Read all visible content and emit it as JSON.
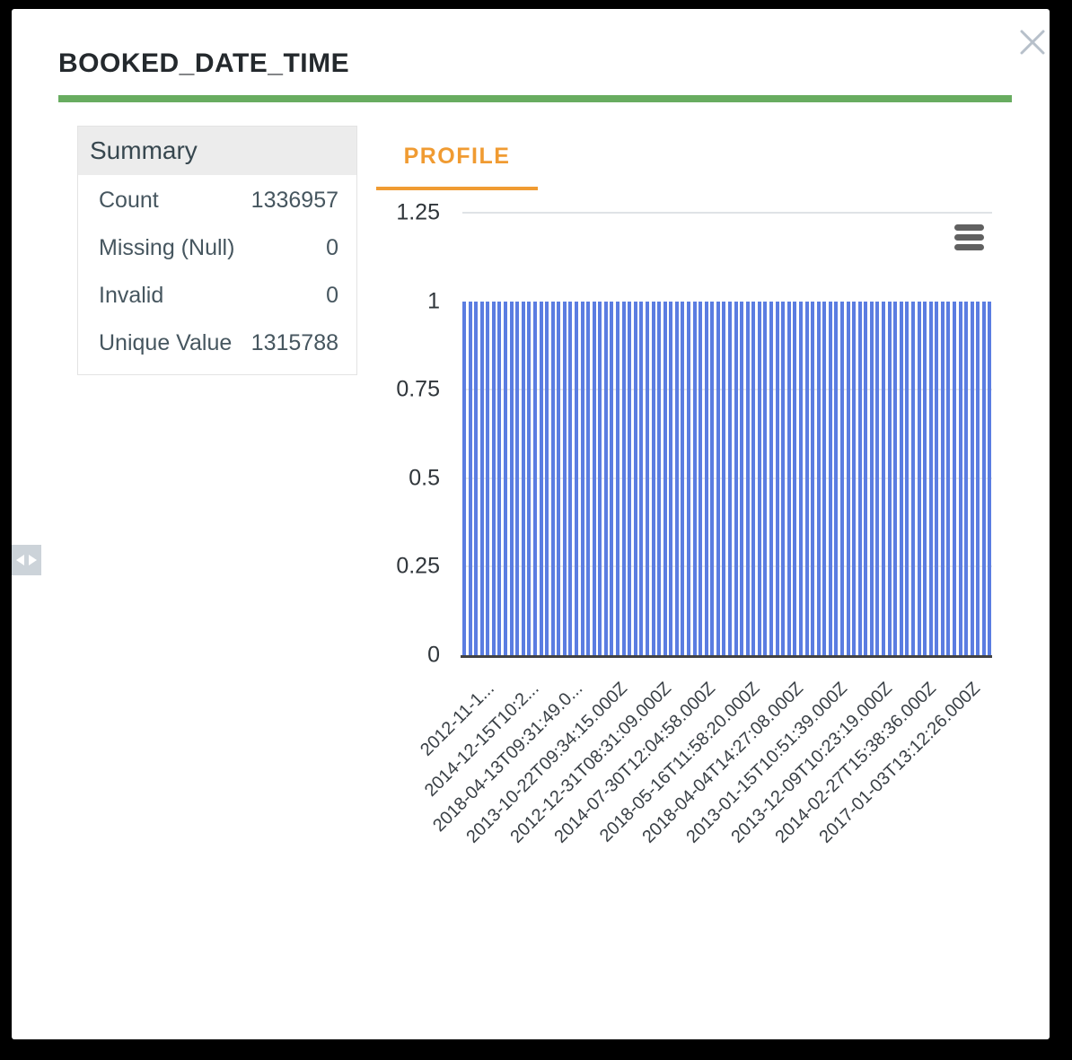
{
  "page": {
    "background_color": "#000000"
  },
  "modal": {
    "title": "BOOKED_DATE_TIME",
    "accent_color": "#68ac60"
  },
  "summary": {
    "title": "Summary",
    "rows": [
      {
        "label": "Count",
        "value": "1336957"
      },
      {
        "label": "Missing (Null)",
        "value": "0"
      },
      {
        "label": "Invalid",
        "value": "0"
      },
      {
        "label": "Unique Value",
        "value": "1315788"
      }
    ]
  },
  "tabs": {
    "profile_label": "PROFILE",
    "active_color": "#f09b32"
  },
  "chart_data": {
    "type": "bar",
    "title": "",
    "xlabel": "",
    "ylabel": "",
    "ylim": [
      0,
      1.25
    ],
    "y_ticks": [
      1.25,
      1,
      0.75,
      0.5,
      0.25,
      0
    ],
    "y_tick_labels": [
      "1.25",
      "1",
      "0.75",
      "0.5",
      "0.25",
      "0"
    ],
    "bar_count": 90,
    "uniform_bar_value": 1,
    "bar_color": "#5b7de1",
    "x_tick_labels": [
      "2012-11-1...",
      "2014-12-15T10:2...",
      "2018-04-13T09:31:49.0...",
      "2013-10-22T09:34:15.000Z",
      "2012-12-31T08:31:09.000Z",
      "2014-07-30T12:04:58.000Z",
      "2018-05-16T11:58:20.000Z",
      "2018-04-04T14:27:08.000Z",
      "2013-01-15T10:51:39.000Z",
      "2013-12-09T10:23:19.000Z",
      "2014-02-27T15:38:36.000Z",
      "2017-01-03T13:12:26.000Z"
    ],
    "x_tick_rotation_deg": -45,
    "gridlines": {
      "strong": [
        1.25
      ],
      "faint": [
        0.75,
        0.5,
        0.25
      ]
    },
    "legend": "none",
    "menu_icon": "hamburger"
  },
  "side_handle": {
    "icon": "collapse-expand-arrows"
  }
}
